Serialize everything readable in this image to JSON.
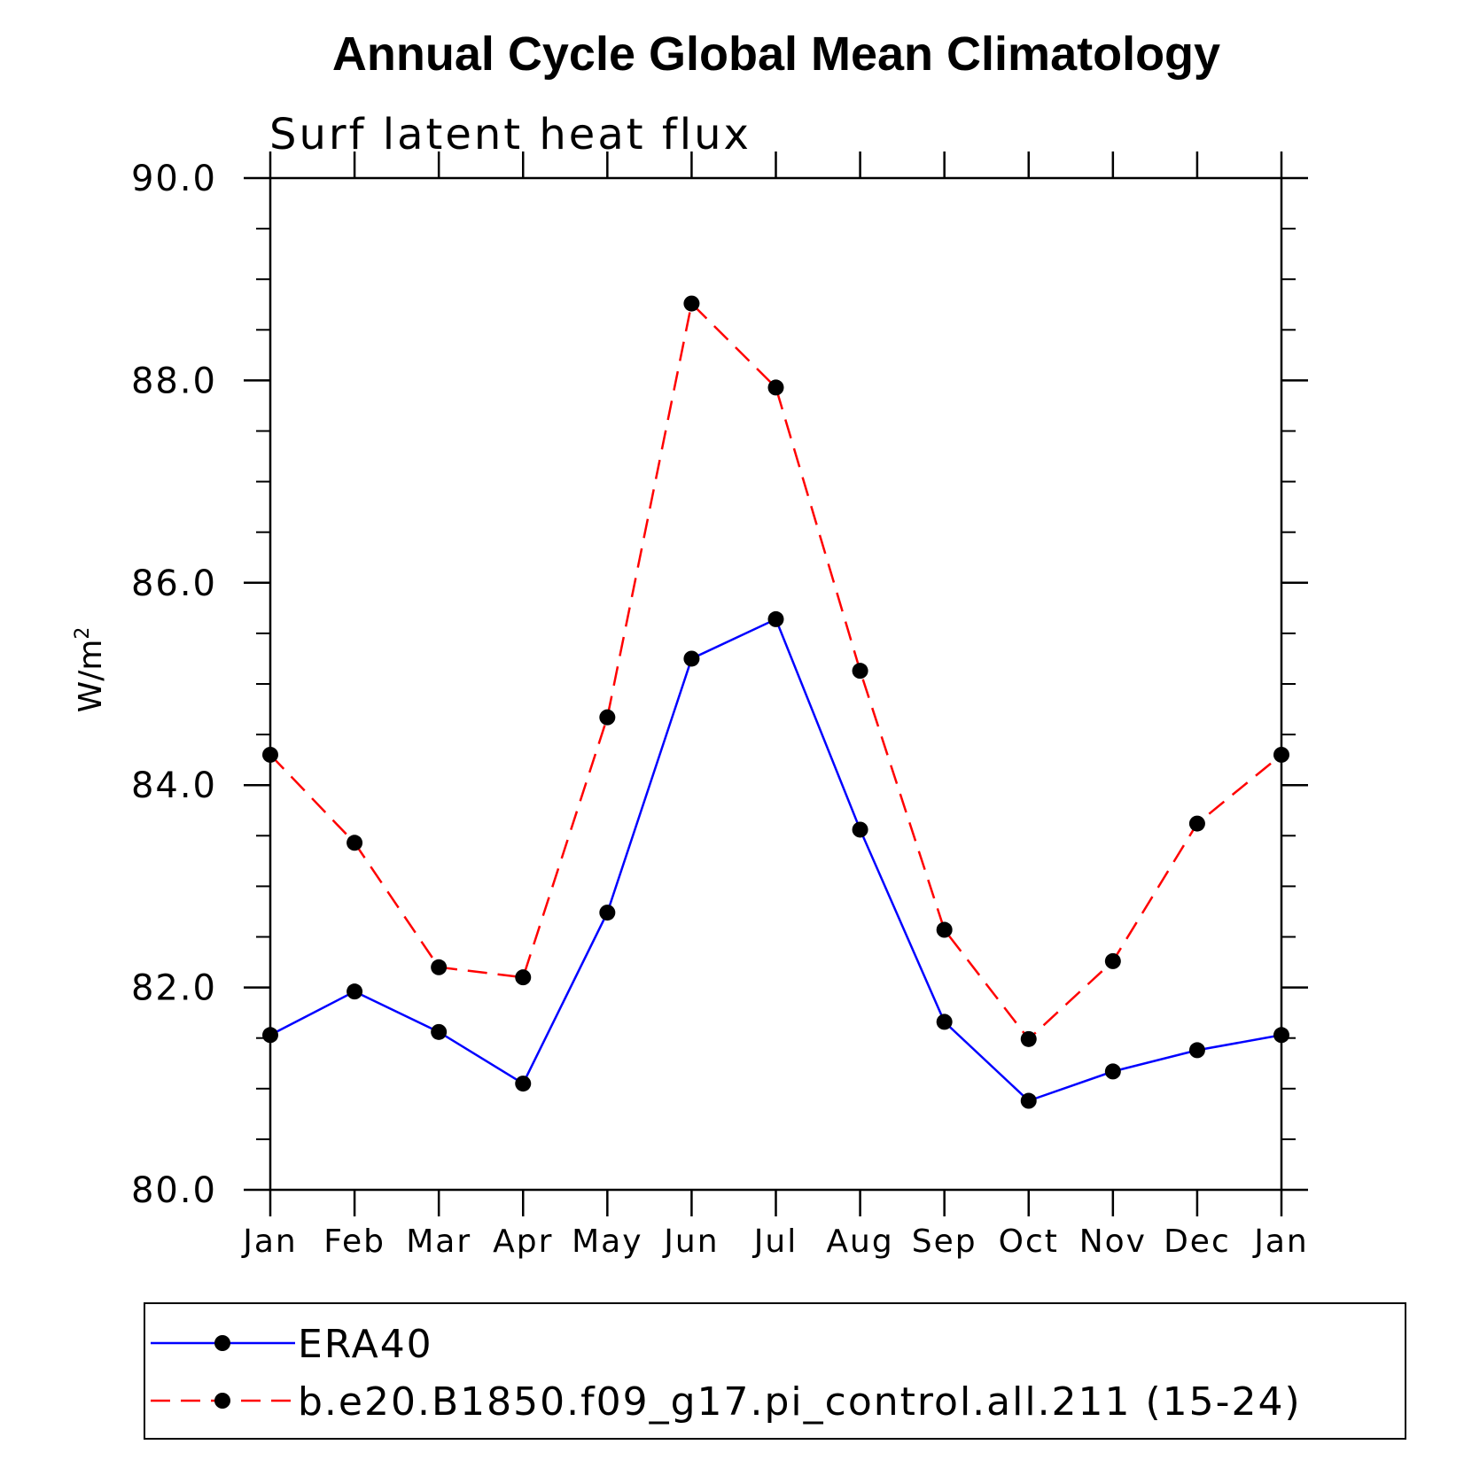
{
  "chart_data": {
    "type": "line",
    "title": "Annual Cycle Global Mean Climatology",
    "subtitle": "Surf latent heat flux",
    "ylabel_base": "W/m",
    "ylabel_sup": "2",
    "categories": [
      "Jan",
      "Feb",
      "Mar",
      "Apr",
      "May",
      "Jun",
      "Jul",
      "Aug",
      "Sep",
      "Oct",
      "Nov",
      "Dec",
      "Jan"
    ],
    "ylim": [
      80.0,
      90.0
    ],
    "yticks": [
      "80.0",
      "82.0",
      "84.0",
      "86.0",
      "88.0",
      "90.0"
    ],
    "y_minor_step": 0.5,
    "grid": false,
    "legend_position": "bottom",
    "series": [
      {
        "name": "ERA40",
        "color": "#0000ff",
        "line_style": "solid",
        "marker": "filled-circle",
        "values": [
          81.53,
          81.96,
          81.56,
          81.05,
          82.74,
          85.25,
          85.64,
          83.56,
          81.66,
          80.88,
          81.17,
          81.38,
          81.53
        ]
      },
      {
        "name": "b.e20.B1850.f09_g17.pi_control.all.211 (15-24)",
        "color": "#ff0000",
        "line_style": "dashed",
        "marker": "filled-circle",
        "values": [
          84.3,
          83.43,
          82.2,
          82.1,
          84.67,
          88.76,
          87.93,
          85.13,
          82.57,
          81.49,
          82.26,
          83.62,
          84.3
        ]
      }
    ]
  }
}
